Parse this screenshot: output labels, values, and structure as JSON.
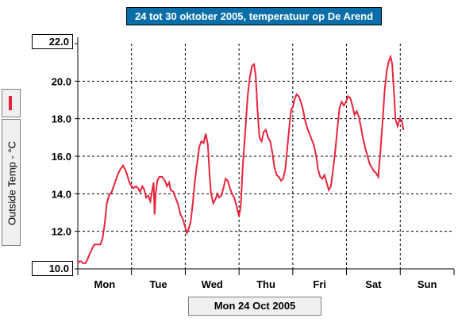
{
  "chart_data": {
    "type": "line",
    "title": "24 tot 30 oktober 2005, temperatuur op De Arend",
    "ylabel": "Outside Temp - °C",
    "xlabel": "",
    "ylim": [
      10,
      22
    ],
    "xlim": [
      0,
      7
    ],
    "y_ticks": [
      "10.0",
      "12.0",
      "14.0",
      "16.0",
      "18.0",
      "20.0",
      "22.0"
    ],
    "x_tick_labels": [
      "Mon",
      "Tue",
      "Wed",
      "Thu",
      "Fri",
      "Sat",
      "Sun"
    ],
    "grid": true,
    "date_label": "Mon 24 Oct 2005",
    "series": [
      {
        "name": "Outside Temp",
        "color": "#e8243c",
        "points": [
          [
            0.0,
            10.3
          ],
          [
            0.03,
            10.4
          ],
          [
            0.06,
            10.4
          ],
          [
            0.1,
            10.3
          ],
          [
            0.14,
            10.3
          ],
          [
            0.18,
            10.5
          ],
          [
            0.22,
            10.8
          ],
          [
            0.27,
            11.1
          ],
          [
            0.31,
            11.3
          ],
          [
            0.36,
            11.3
          ],
          [
            0.42,
            11.3
          ],
          [
            0.46,
            11.6
          ],
          [
            0.5,
            12.4
          ],
          [
            0.54,
            13.5
          ],
          [
            0.58,
            13.9
          ],
          [
            0.63,
            14.1
          ],
          [
            0.68,
            14.5
          ],
          [
            0.74,
            15.0
          ],
          [
            0.79,
            15.3
          ],
          [
            0.84,
            15.5
          ],
          [
            0.88,
            15.3
          ],
          [
            0.92,
            15.0
          ],
          [
            0.96,
            14.6
          ],
          [
            1.0,
            14.4
          ],
          [
            1.04,
            14.3
          ],
          [
            1.08,
            14.4
          ],
          [
            1.12,
            14.3
          ],
          [
            1.16,
            14.1
          ],
          [
            1.2,
            14.4
          ],
          [
            1.24,
            14.2
          ],
          [
            1.27,
            13.8
          ],
          [
            1.31,
            13.9
          ],
          [
            1.35,
            13.6
          ],
          [
            1.38,
            14.1
          ],
          [
            1.41,
            14.6
          ],
          [
            1.43,
            12.9
          ],
          [
            1.45,
            14.0
          ],
          [
            1.48,
            14.7
          ],
          [
            1.52,
            14.9
          ],
          [
            1.57,
            14.9
          ],
          [
            1.62,
            14.7
          ],
          [
            1.66,
            14.4
          ],
          [
            1.7,
            14.6
          ],
          [
            1.73,
            14.2
          ],
          [
            1.78,
            14.1
          ],
          [
            1.83,
            13.7
          ],
          [
            1.87,
            13.4
          ],
          [
            1.91,
            12.9
          ],
          [
            1.95,
            12.7
          ],
          [
            2.0,
            12.2
          ],
          [
            2.03,
            11.9
          ],
          [
            2.06,
            12.1
          ],
          [
            2.1,
            12.5
          ],
          [
            2.14,
            13.5
          ],
          [
            2.18,
            14.7
          ],
          [
            2.22,
            15.6
          ],
          [
            2.26,
            16.5
          ],
          [
            2.3,
            16.8
          ],
          [
            2.34,
            16.7
          ],
          [
            2.38,
            17.2
          ],
          [
            2.42,
            16.6
          ],
          [
            2.45,
            15.1
          ],
          [
            2.48,
            14.0
          ],
          [
            2.52,
            13.5
          ],
          [
            2.56,
            13.7
          ],
          [
            2.6,
            14.0
          ],
          [
            2.63,
            13.8
          ],
          [
            2.67,
            13.9
          ],
          [
            2.71,
            14.3
          ],
          [
            2.75,
            14.8
          ],
          [
            2.79,
            14.7
          ],
          [
            2.83,
            14.3
          ],
          [
            2.87,
            14.0
          ],
          [
            2.91,
            13.8
          ],
          [
            2.95,
            13.4
          ],
          [
            2.98,
            13.0
          ],
          [
            3.0,
            12.8
          ],
          [
            3.03,
            13.3
          ],
          [
            3.07,
            15.5
          ],
          [
            3.12,
            17.5
          ],
          [
            3.16,
            19.2
          ],
          [
            3.2,
            20.2
          ],
          [
            3.24,
            20.8
          ],
          [
            3.28,
            20.9
          ],
          [
            3.31,
            20.3
          ],
          [
            3.34,
            18.6
          ],
          [
            3.38,
            17.0
          ],
          [
            3.42,
            16.8
          ],
          [
            3.46,
            17.3
          ],
          [
            3.5,
            17.4
          ],
          [
            3.54,
            17.0
          ],
          [
            3.58,
            16.8
          ],
          [
            3.62,
            16.2
          ],
          [
            3.66,
            15.4
          ],
          [
            3.7,
            15.0
          ],
          [
            3.74,
            14.9
          ],
          [
            3.78,
            14.7
          ],
          [
            3.82,
            14.8
          ],
          [
            3.86,
            15.3
          ],
          [
            3.9,
            16.5
          ],
          [
            3.94,
            17.7
          ],
          [
            3.97,
            18.5
          ],
          [
            4.0,
            18.6
          ],
          [
            4.03,
            19.0
          ],
          [
            4.07,
            19.3
          ],
          [
            4.11,
            19.2
          ],
          [
            4.15,
            18.9
          ],
          [
            4.19,
            18.5
          ],
          [
            4.23,
            17.9
          ],
          [
            4.27,
            17.5
          ],
          [
            4.31,
            17.2
          ],
          [
            4.35,
            16.9
          ],
          [
            4.39,
            16.6
          ],
          [
            4.43,
            16.1
          ],
          [
            4.47,
            15.3
          ],
          [
            4.51,
            14.9
          ],
          [
            4.55,
            14.8
          ],
          [
            4.59,
            15.0
          ],
          [
            4.63,
            14.6
          ],
          [
            4.67,
            14.2
          ],
          [
            4.71,
            14.4
          ],
          [
            4.75,
            15.3
          ],
          [
            4.79,
            16.3
          ],
          [
            4.83,
            17.5
          ],
          [
            4.87,
            18.6
          ],
          [
            4.91,
            18.9
          ],
          [
            4.95,
            18.7
          ],
          [
            4.99,
            18.9
          ],
          [
            5.03,
            19.2
          ],
          [
            5.07,
            19.1
          ],
          [
            5.11,
            18.7
          ],
          [
            5.15,
            18.2
          ],
          [
            5.19,
            18.4
          ],
          [
            5.23,
            18.1
          ],
          [
            5.27,
            17.5
          ],
          [
            5.31,
            16.9
          ],
          [
            5.35,
            16.4
          ],
          [
            5.39,
            16.0
          ],
          [
            5.43,
            15.6
          ],
          [
            5.47,
            15.4
          ],
          [
            5.51,
            15.2
          ],
          [
            5.55,
            15.1
          ],
          [
            5.59,
            14.9
          ],
          [
            5.63,
            16.2
          ],
          [
            5.67,
            17.8
          ],
          [
            5.71,
            19.5
          ],
          [
            5.75,
            20.6
          ],
          [
            5.79,
            21.1
          ],
          [
            5.82,
            21.3
          ],
          [
            5.85,
            20.9
          ],
          [
            5.88,
            19.5
          ],
          [
            5.91,
            18.0
          ],
          [
            5.95,
            17.6
          ],
          [
            5.99,
            18.0
          ],
          [
            6.03,
            17.9
          ],
          [
            6.06,
            17.4
          ]
        ]
      }
    ]
  }
}
